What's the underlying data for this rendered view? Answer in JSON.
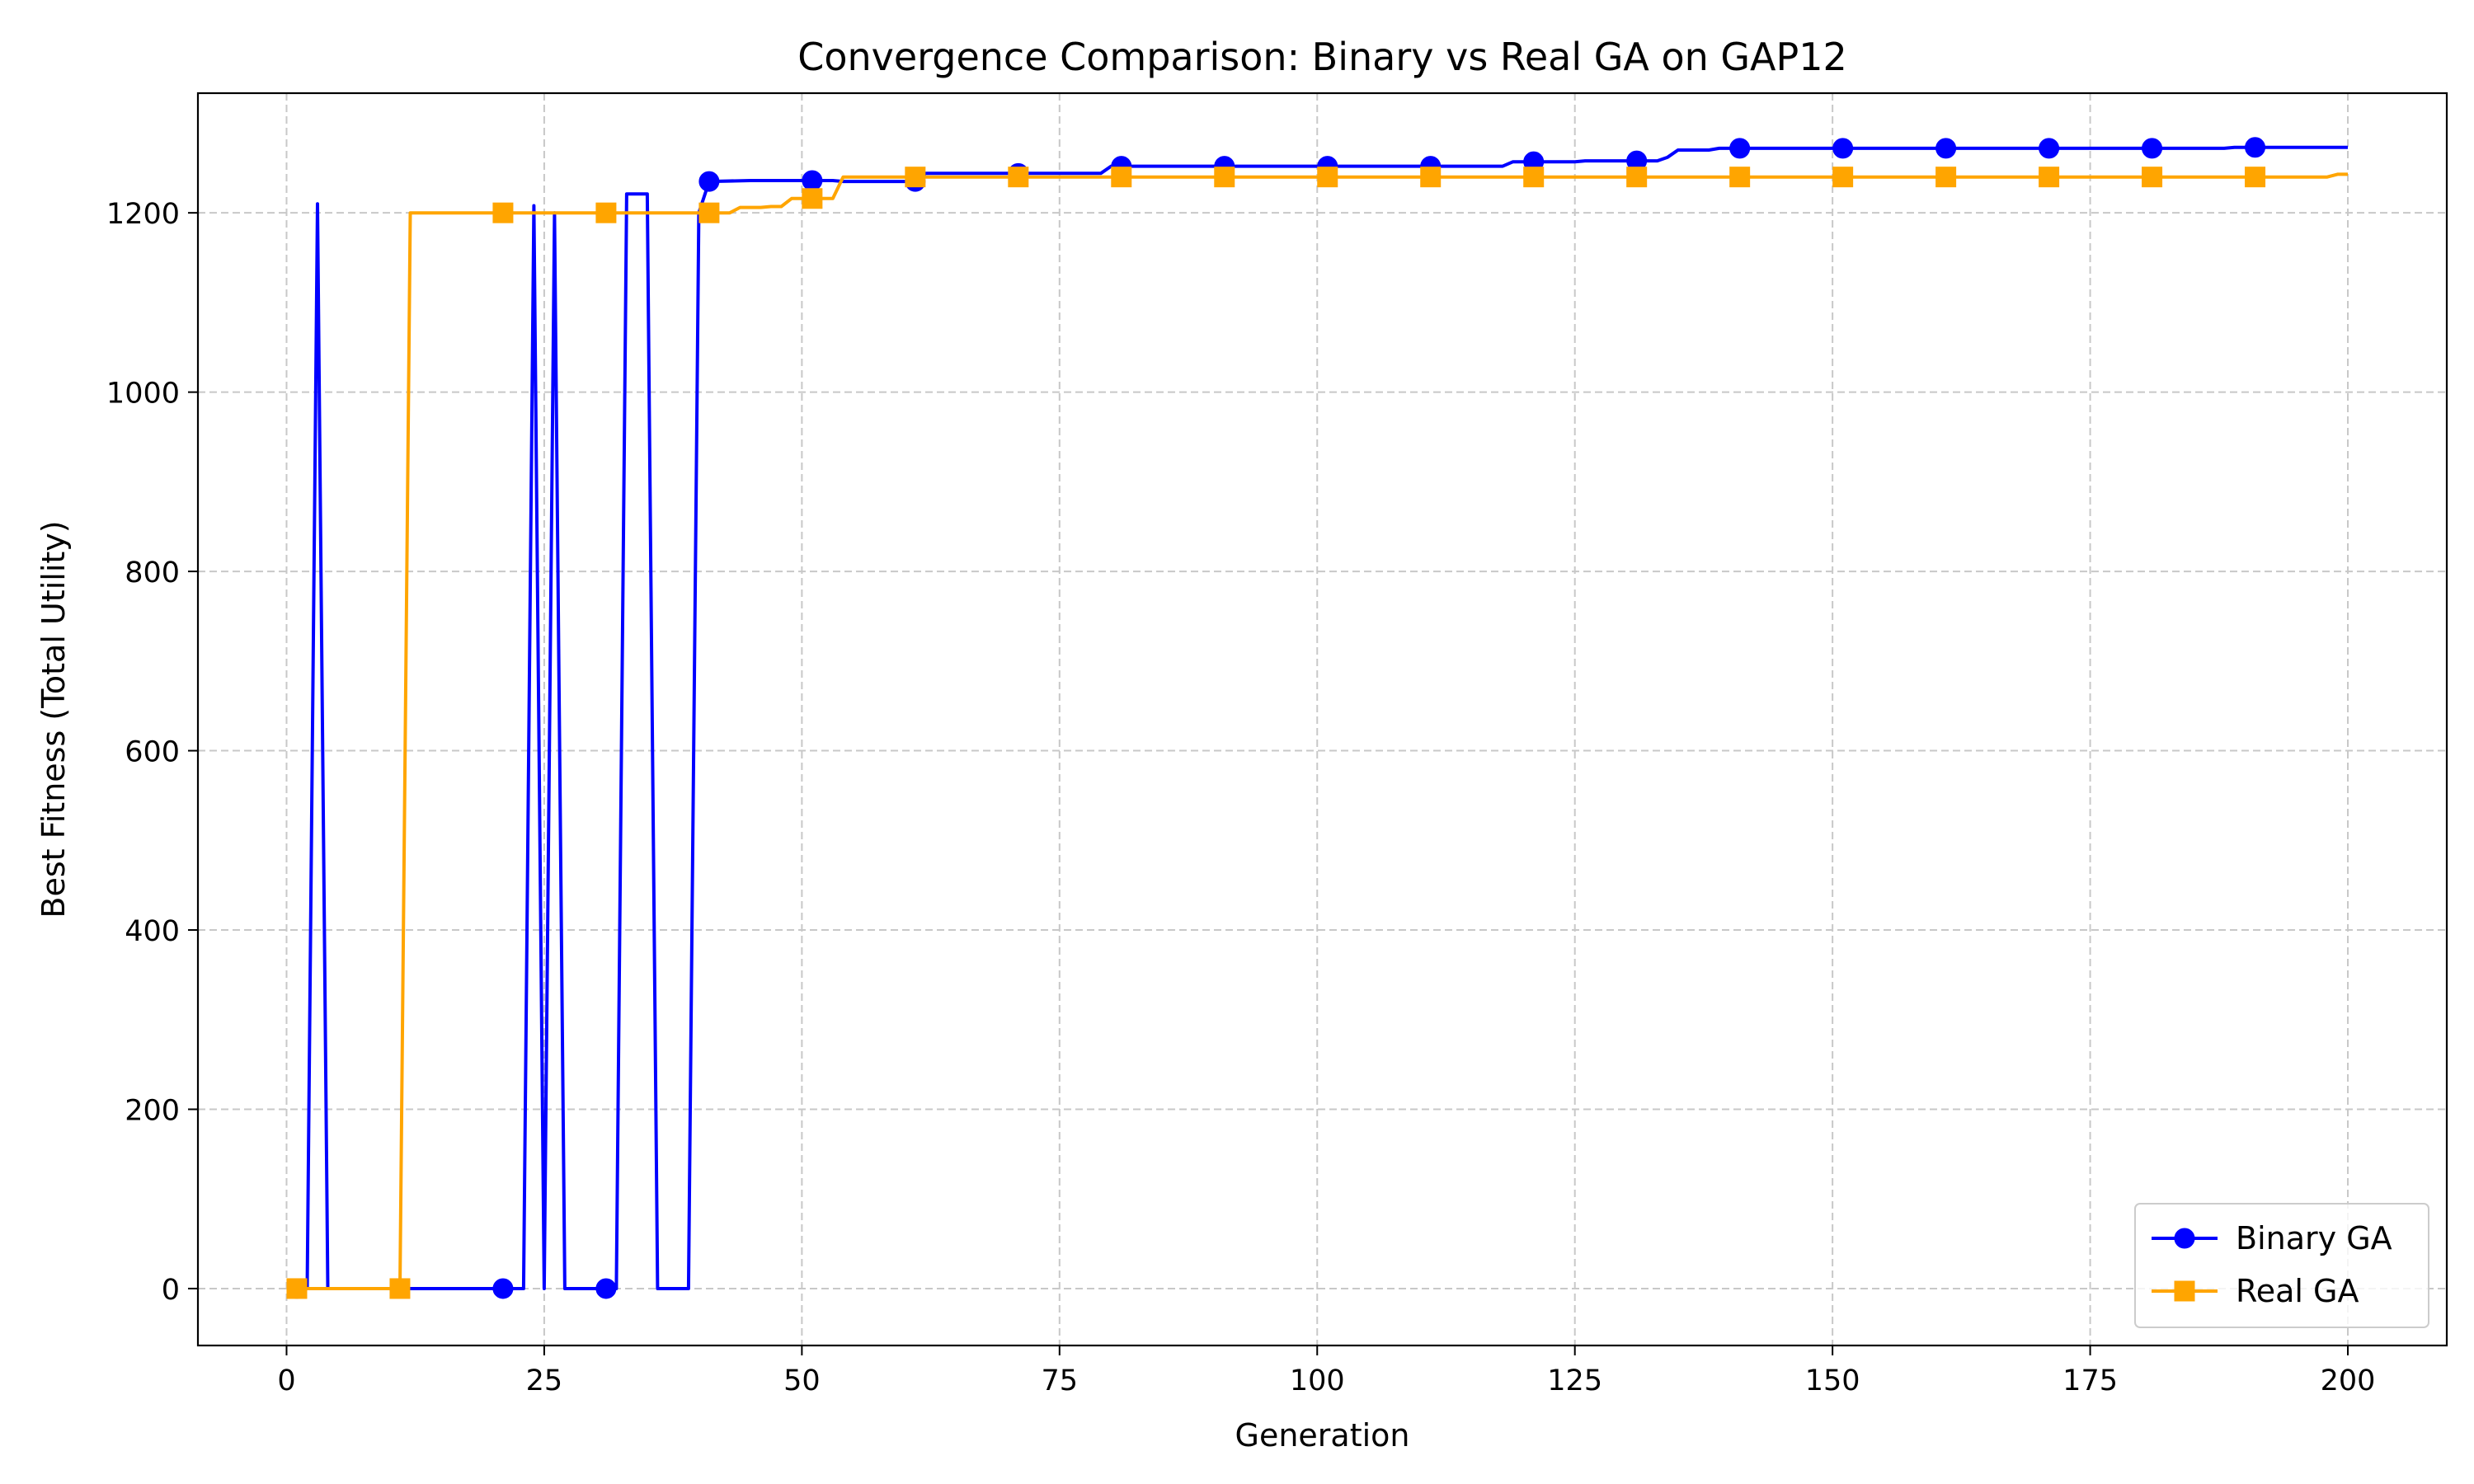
{
  "chart_data": {
    "type": "line",
    "title": "Convergence Comparison: Binary vs Real GA on GAP12",
    "xlabel": "Generation",
    "ylabel": "Best Fitness (Total Utility)",
    "xlim": [
      -8.6,
      209.6
    ],
    "ylim": [
      -63.5,
      1333.5
    ],
    "xticks": [
      0,
      25,
      50,
      75,
      100,
      125,
      150,
      175,
      200
    ],
    "yticks": [
      0,
      200,
      400,
      600,
      800,
      1000,
      1200
    ],
    "grid": true,
    "legend_position": "lower right",
    "series": [
      {
        "name": "Binary GA",
        "color": "#0000ff",
        "marker": "circle",
        "marker_every": 10,
        "points": [
          [
            1,
            0
          ],
          [
            2,
            0
          ],
          [
            3,
            1210
          ],
          [
            4,
            0
          ],
          [
            5,
            0
          ],
          [
            10,
            0
          ],
          [
            15,
            0
          ],
          [
            20,
            0
          ],
          [
            21,
            0
          ],
          [
            22,
            0
          ],
          [
            23,
            0
          ],
          [
            24,
            1208
          ],
          [
            25,
            0
          ],
          [
            26,
            1200
          ],
          [
            27,
            0
          ],
          [
            28,
            0
          ],
          [
            30,
            0
          ],
          [
            31,
            0
          ],
          [
            32,
            0
          ],
          [
            33,
            1221
          ],
          [
            34,
            1221
          ],
          [
            35,
            1221
          ],
          [
            36,
            0
          ],
          [
            37,
            0
          ],
          [
            38,
            0
          ],
          [
            39,
            0
          ],
          [
            40,
            1200
          ],
          [
            41,
            1235
          ],
          [
            45,
            1236
          ],
          [
            50,
            1236
          ],
          [
            51,
            1236
          ],
          [
            53,
            1236
          ],
          [
            54,
            1235
          ],
          [
            61,
            1235
          ],
          [
            62,
            1244
          ],
          [
            65,
            1244
          ],
          [
            70,
            1244
          ],
          [
            71,
            1244
          ],
          [
            75,
            1244
          ],
          [
            79,
            1244
          ],
          [
            80,
            1252
          ],
          [
            81,
            1252
          ],
          [
            90,
            1252
          ],
          [
            91,
            1252
          ],
          [
            100,
            1252
          ],
          [
            101,
            1252
          ],
          [
            110,
            1252
          ],
          [
            111,
            1252
          ],
          [
            118,
            1252
          ],
          [
            119,
            1257
          ],
          [
            121,
            1257
          ],
          [
            125,
            1257
          ],
          [
            126,
            1258
          ],
          [
            130,
            1258
          ],
          [
            131,
            1258
          ],
          [
            133,
            1258
          ],
          [
            134,
            1262
          ],
          [
            135,
            1270
          ],
          [
            138,
            1270
          ],
          [
            139,
            1272
          ],
          [
            141,
            1272
          ],
          [
            150,
            1272
          ],
          [
            151,
            1272
          ],
          [
            160,
            1272
          ],
          [
            161,
            1272
          ],
          [
            170,
            1272
          ],
          [
            171,
            1272
          ],
          [
            180,
            1272
          ],
          [
            181,
            1272
          ],
          [
            188,
            1272
          ],
          [
            189,
            1273
          ],
          [
            191,
            1273
          ],
          [
            200,
            1273
          ]
        ]
      },
      {
        "name": "Real GA",
        "color": "#ffa500",
        "marker": "square",
        "marker_every": 10,
        "points": [
          [
            1,
            0
          ],
          [
            5,
            0
          ],
          [
            10,
            0
          ],
          [
            11,
            0
          ],
          [
            12,
            1200
          ],
          [
            15,
            1200
          ],
          [
            20,
            1200
          ],
          [
            21,
            1200
          ],
          [
            25,
            1200
          ],
          [
            30,
            1200
          ],
          [
            31,
            1200
          ],
          [
            35,
            1200
          ],
          [
            40,
            1200
          ],
          [
            41,
            1200
          ],
          [
            43,
            1200
          ],
          [
            44,
            1206
          ],
          [
            46,
            1206
          ],
          [
            47,
            1207
          ],
          [
            48,
            1207
          ],
          [
            49,
            1216
          ],
          [
            50,
            1216
          ],
          [
            51,
            1216
          ],
          [
            52,
            1216
          ],
          [
            53,
            1216
          ],
          [
            54,
            1240
          ],
          [
            55,
            1240
          ],
          [
            60,
            1240
          ],
          [
            61,
            1240
          ],
          [
            70,
            1240
          ],
          [
            71,
            1240
          ],
          [
            80,
            1240
          ],
          [
            81,
            1240
          ],
          [
            90,
            1240
          ],
          [
            91,
            1240
          ],
          [
            100,
            1240
          ],
          [
            101,
            1240
          ],
          [
            110,
            1240
          ],
          [
            111,
            1240
          ],
          [
            120,
            1240
          ],
          [
            121,
            1240
          ],
          [
            130,
            1240
          ],
          [
            131,
            1240
          ],
          [
            140,
            1240
          ],
          [
            141,
            1240
          ],
          [
            150,
            1240
          ],
          [
            151,
            1240
          ],
          [
            160,
            1240
          ],
          [
            161,
            1240
          ],
          [
            170,
            1240
          ],
          [
            171,
            1240
          ],
          [
            180,
            1240
          ],
          [
            181,
            1240
          ],
          [
            190,
            1240
          ],
          [
            191,
            1240
          ],
          [
            198,
            1240
          ],
          [
            199,
            1243
          ],
          [
            200,
            1243
          ]
        ]
      }
    ]
  }
}
